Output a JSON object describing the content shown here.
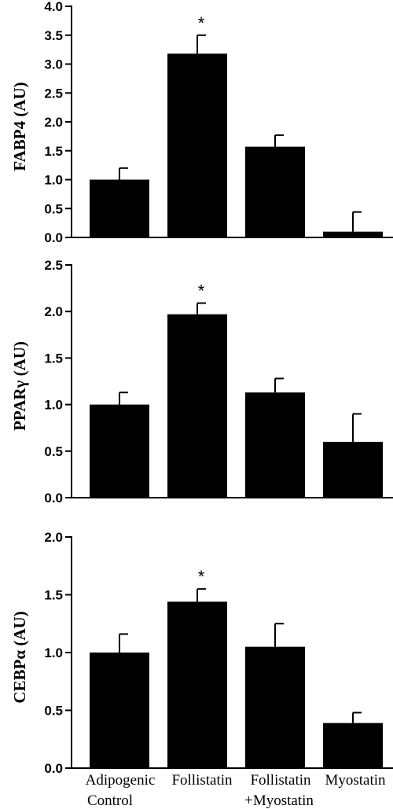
{
  "chart_data": [
    {
      "type": "bar",
      "ylabel": "FABP4 (AU)",
      "ylim": [
        0,
        4.0
      ],
      "ticks": [
        "0.0",
        "0.5",
        "1.0",
        "1.5",
        "2.0",
        "2.5",
        "3.0",
        "3.5",
        "4.0"
      ],
      "categories": [
        "Adipogenic Control",
        "Follistatin",
        "Follistatin +Myostatin",
        "Myostatin"
      ],
      "values": [
        1.0,
        3.18,
        1.57,
        0.1
      ],
      "errors": [
        0.2,
        0.32,
        0.2,
        0.34
      ],
      "annotations": [
        "",
        "*",
        "",
        ""
      ]
    },
    {
      "type": "bar",
      "ylabel": "PPARγ (AU)",
      "ylim": [
        0,
        2.5
      ],
      "ticks": [
        "0.0",
        "0.5",
        "1.0",
        "1.5",
        "2.0",
        "2.5"
      ],
      "categories": [
        "Adipogenic Control",
        "Follistatin",
        "Follistatin +Myostatin",
        "Myostatin"
      ],
      "values": [
        1.0,
        1.97,
        1.13,
        0.6
      ],
      "errors": [
        0.13,
        0.12,
        0.15,
        0.3
      ],
      "annotations": [
        "",
        "*",
        "",
        ""
      ]
    },
    {
      "type": "bar",
      "ylabel": "CEBPα (AU)",
      "ylim": [
        0,
        2.0
      ],
      "ticks": [
        "0.0",
        "0.5",
        "1.0",
        "1.5",
        "2.0"
      ],
      "categories": [
        "Adipogenic Control",
        "Follistatin",
        "Follistatin +Myostatin",
        "Myostatin"
      ],
      "values": [
        1.0,
        1.44,
        1.05,
        0.39
      ],
      "errors": [
        0.16,
        0.11,
        0.2,
        0.09
      ],
      "annotations": [
        "",
        "*",
        "",
        ""
      ]
    }
  ],
  "x_labels": [
    {
      "line1": "Adipogenic",
      "line2": "Control"
    },
    {
      "line1": "Follistatin",
      "line2": ""
    },
    {
      "line1": "Follistatin",
      "line2": "+Myostatin"
    },
    {
      "line1": "Myostatin",
      "line2": ""
    }
  ],
  "colors": {
    "bar": "#000000",
    "axis": "#000000",
    "background": "#ffffff"
  }
}
